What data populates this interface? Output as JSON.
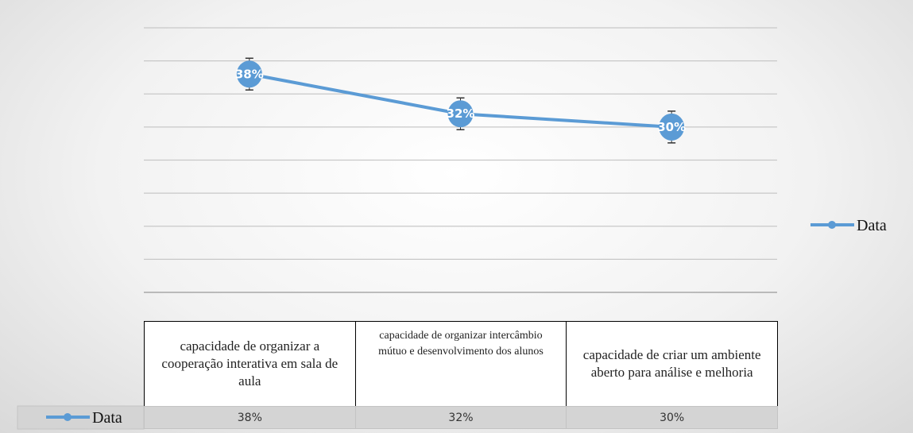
{
  "chart_data": {
    "type": "line",
    "categories": [
      "capacidade de organizar a cooperação interativa em sala de aula",
      "capacidade de organizar intercâmbio mútuo e desenvolvimento dos alunos",
      "capacidade de criar um ambiente aberto para análise e melhoria"
    ],
    "series": [
      {
        "name": "Data",
        "color": "#5b9bd5",
        "values": [
          38,
          32,
          30
        ],
        "value_labels": [
          "38%",
          "32%",
          "30%"
        ],
        "error": [
          2.4,
          2.4,
          2.4
        ]
      }
    ],
    "ylim": [
      5,
      45
    ],
    "yticks": [
      5,
      10,
      15,
      20,
      25,
      30,
      35,
      40,
      45
    ],
    "grid": true,
    "legend": "right",
    "data_table": true
  }
}
